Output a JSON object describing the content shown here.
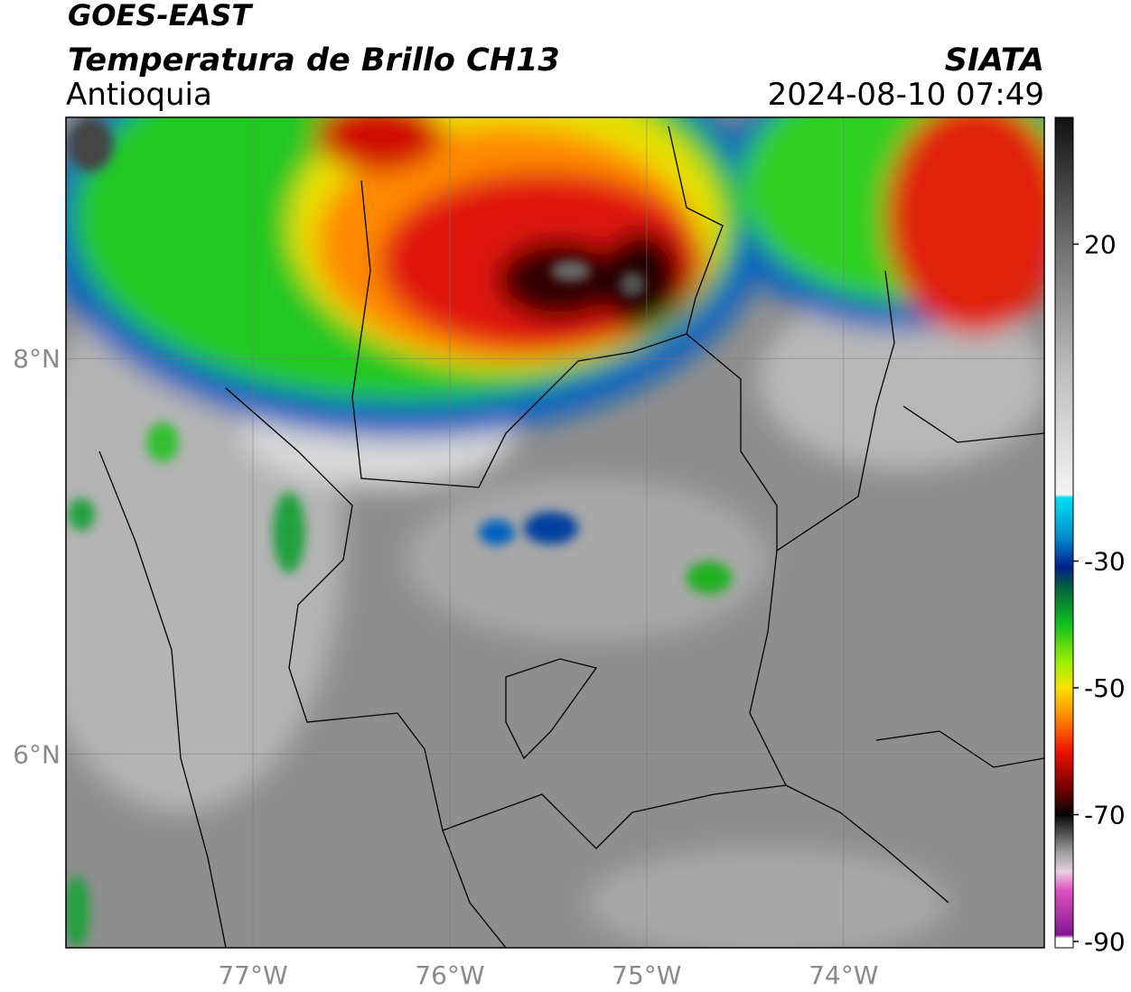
{
  "header": {
    "title": "GOES-EAST",
    "subtitle": "Temperatura de Brillo CH13",
    "region": "Antioquia",
    "source": "SIATA",
    "datetime": "2024-08-10 07:49"
  },
  "map": {
    "xlim": [
      -77.95,
      -72.98
    ],
    "ylim": [
      5.02,
      9.22
    ],
    "grid": true,
    "xticks": [
      {
        "value": -77,
        "label": "77°W"
      },
      {
        "value": -76,
        "label": "76°W"
      },
      {
        "value": -75,
        "label": "75°W"
      },
      {
        "value": -74,
        "label": "74°W"
      }
    ],
    "yticks": [
      {
        "value": 8,
        "label": "8°N"
      },
      {
        "value": 6,
        "label": "6°N"
      }
    ]
  },
  "colorbar": {
    "clim": [
      -91,
      40
    ],
    "ticks": [
      20,
      -30,
      -50,
      -70,
      -90
    ],
    "stops": [
      {
        "value": 40,
        "color": "#111111"
      },
      {
        "value": 20,
        "color": "#6e6e6e"
      },
      {
        "value": 0,
        "color": "#bdbdbd"
      },
      {
        "value": -19.5,
        "color": "#f4f4f4"
      },
      {
        "value": -20,
        "color": "#00e0f0"
      },
      {
        "value": -26,
        "color": "#0090d0"
      },
      {
        "value": -31,
        "color": "#00208a"
      },
      {
        "value": -34,
        "color": "#006040"
      },
      {
        "value": -40,
        "color": "#10c020"
      },
      {
        "value": -46,
        "color": "#a0f000"
      },
      {
        "value": -50,
        "color": "#f8e000"
      },
      {
        "value": -55,
        "color": "#ff8000"
      },
      {
        "value": -60,
        "color": "#f01000"
      },
      {
        "value": -66,
        "color": "#700000"
      },
      {
        "value": -70,
        "color": "#050505"
      },
      {
        "value": -76,
        "color": "#a0a0a0"
      },
      {
        "value": -79,
        "color": "#e8d0e0"
      },
      {
        "value": -82,
        "color": "#e050c0"
      },
      {
        "value": -89,
        "color": "#801890"
      },
      {
        "value": -89.5,
        "color": "#ffffff"
      },
      {
        "value": -91,
        "color": "#ffffff"
      }
    ]
  }
}
